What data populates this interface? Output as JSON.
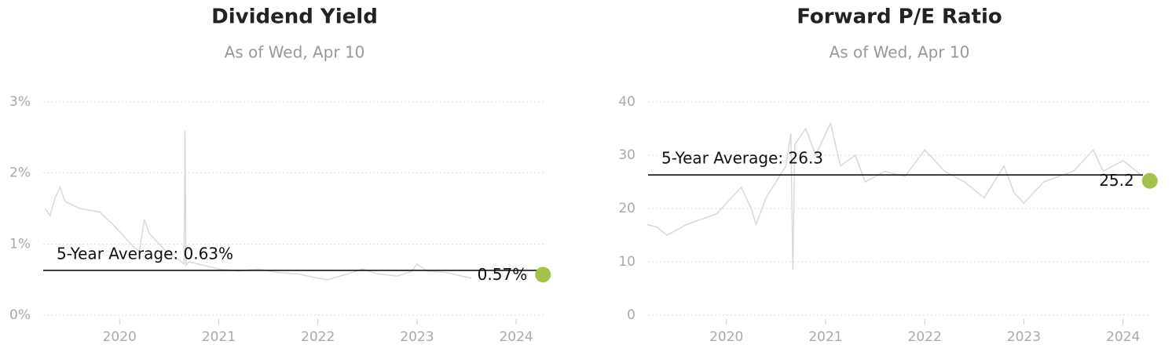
{
  "chart_data": [
    {
      "type": "line",
      "title": "Dividend Yield",
      "subtitle": "As of Wed, Apr 10",
      "x": [
        2019.25,
        2019.3,
        2019.35,
        2019.4,
        2019.45,
        2019.6,
        2019.8,
        2019.95,
        2020.05,
        2020.15,
        2020.2,
        2020.25,
        2020.3,
        2020.4,
        2020.5,
        2020.6,
        2020.65,
        2020.66,
        2020.67,
        2020.7,
        2020.85,
        2021.0,
        2021.2,
        2021.4,
        2021.6,
        2021.8,
        2022.0,
        2022.1,
        2022.3,
        2022.45,
        2022.6,
        2022.8,
        2022.95,
        2023.0,
        2023.1,
        2023.3,
        2023.45,
        2023.55
      ],
      "series": [
        {
          "color": "#d9d9d9",
          "values": [
            1.5,
            1.4,
            1.65,
            1.8,
            1.6,
            1.5,
            1.45,
            1.25,
            1.1,
            0.95,
            0.9,
            1.35,
            1.15,
            1.0,
            0.85,
            0.78,
            0.72,
            2.6,
            0.7,
            0.75,
            0.7,
            0.65,
            0.62,
            0.65,
            0.6,
            0.58,
            0.52,
            0.5,
            0.58,
            0.65,
            0.58,
            0.55,
            0.62,
            0.72,
            0.62,
            0.6,
            0.55,
            0.52
          ]
        }
      ],
      "average": 0.63,
      "average_label": "5-Year Average: 0.63%",
      "average_color": "#000000",
      "current_x": 2024.27,
      "current": 0.57,
      "current_label": "0.57%",
      "current_color": "#a4c14a",
      "xlim": [
        2019.23,
        2024.3
      ],
      "xticks": [
        2020,
        2021,
        2022,
        2023,
        2024
      ],
      "ylim": [
        0,
        3
      ],
      "yticks": [
        {
          "value": 0,
          "label": "0%"
        },
        {
          "value": 1,
          "label": "1%"
        },
        {
          "value": 2,
          "label": "2%"
        },
        {
          "value": 3,
          "label": "3%"
        }
      ],
      "grid": true
    },
    {
      "type": "line",
      "title": "Forward P/E Ratio",
      "subtitle": "As of Wed, Apr 10",
      "x": [
        2019.2,
        2019.3,
        2019.4,
        2019.6,
        2019.9,
        2020.0,
        2020.15,
        2020.25,
        2020.3,
        2020.4,
        2020.5,
        2020.6,
        2020.65,
        2020.67,
        2020.69,
        2020.8,
        2020.9,
        2021.0,
        2021.05,
        2021.15,
        2021.3,
        2021.4,
        2021.6,
        2021.8,
        2022.0,
        2022.2,
        2022.4,
        2022.6,
        2022.8,
        2022.9,
        2023.0,
        2023.2,
        2023.5,
        2023.7,
        2023.8,
        2024.0,
        2024.2
      ],
      "series": [
        {
          "color": "#d9d9d9",
          "values": [
            17,
            16.5,
            15,
            17,
            19,
            21,
            24,
            20,
            17,
            22,
            25,
            28,
            34,
            8.5,
            32,
            35,
            30,
            34,
            36,
            28,
            30,
            25,
            27,
            26,
            31,
            27,
            25,
            22,
            28,
            23,
            21,
            25,
            27,
            31,
            27,
            29,
            26
          ]
        }
      ],
      "average": 26.3,
      "average_label": "5-Year Average: 26.3",
      "average_color": "#000000",
      "current_x": 2024.27,
      "current": 25.2,
      "current_label": "25.2",
      "current_color": "#a4c14a",
      "xlim": [
        2019.21,
        2024.28
      ],
      "xticks": [
        2020,
        2021,
        2022,
        2023,
        2024
      ],
      "ylim": [
        0,
        40
      ],
      "yticks": [
        0,
        10,
        20,
        30,
        40
      ],
      "grid": true
    }
  ]
}
